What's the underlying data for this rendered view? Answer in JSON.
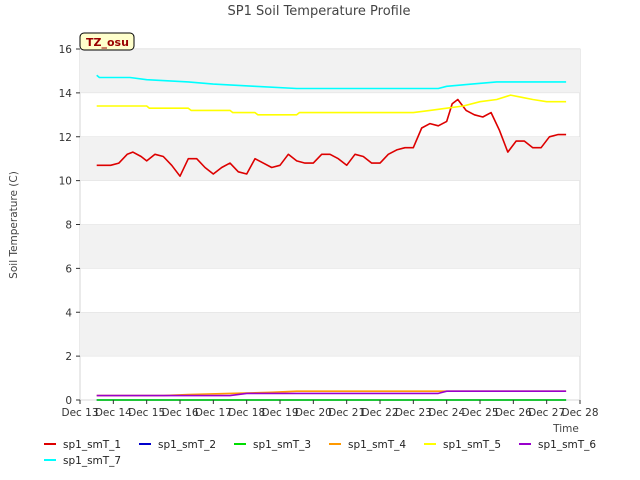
{
  "chart_data": {
    "type": "line",
    "title": "SP1 Soil Temperature Profile",
    "ylabel": "Soil Temperature (C)",
    "xlabel": "Time",
    "badge": "TZ_osu",
    "ylim": [
      0,
      16
    ],
    "yticks": [
      0,
      2,
      4,
      6,
      8,
      10,
      12,
      14,
      16
    ],
    "xticks": [
      "Dec 13",
      "Dec 14",
      "Dec 15",
      "Dec 16",
      "Dec 17",
      "Dec 18",
      "Dec 19",
      "Dec 20",
      "Dec 21",
      "Dec 22",
      "Dec 23",
      "Dec 24",
      "Dec 25",
      "Dec 26",
      "Dec 27",
      "Dec 28"
    ],
    "xlim": [
      "2020-12-13",
      "2020-12-28"
    ],
    "grid": "horizontal bands",
    "legend_position": "bottom",
    "series": [
      {
        "name": "sp1_smT_1",
        "color": "#dd0000",
        "x": [
          "2020-12-13T12:00",
          "2020-12-13T22:00",
          "2020-12-14T04:00",
          "2020-12-14T10:00",
          "2020-12-14T14:00",
          "2020-12-14T20:00",
          "2020-12-15T00:00",
          "2020-12-15T06:00",
          "2020-12-15T12:00",
          "2020-12-15T18:00",
          "2020-12-16T00:00",
          "2020-12-16T06:00",
          "2020-12-16T12:00",
          "2020-12-16T18:00",
          "2020-12-17T00:00",
          "2020-12-17T06:00",
          "2020-12-17T12:00",
          "2020-12-17T18:00",
          "2020-12-18T00:00",
          "2020-12-18T06:00",
          "2020-12-18T12:00",
          "2020-12-18T18:00",
          "2020-12-19T00:00",
          "2020-12-19T06:00",
          "2020-12-19T12:00",
          "2020-12-19T18:00",
          "2020-12-20T00:00",
          "2020-12-20T06:00",
          "2020-12-20T12:00",
          "2020-12-20T18:00",
          "2020-12-21T00:00",
          "2020-12-21T06:00",
          "2020-12-21T12:00",
          "2020-12-21T18:00",
          "2020-12-22T00:00",
          "2020-12-22T06:00",
          "2020-12-22T12:00",
          "2020-12-22T18:00",
          "2020-12-23T00:00",
          "2020-12-23T06:00",
          "2020-12-23T12:00",
          "2020-12-23T18:00",
          "2020-12-24T00:00",
          "2020-12-24T04:00",
          "2020-12-24T08:00",
          "2020-12-24T14:00",
          "2020-12-24T20:00",
          "2020-12-25T02:00",
          "2020-12-25T08:00",
          "2020-12-25T14:00",
          "2020-12-25T20:00",
          "2020-12-26T02:00",
          "2020-12-26T08:00",
          "2020-12-26T14:00",
          "2020-12-26T20:00",
          "2020-12-27T02:00",
          "2020-12-27T08:00",
          "2020-12-27T14:00"
        ],
        "y": [
          10.7,
          10.7,
          10.8,
          11.2,
          11.3,
          11.1,
          10.9,
          11.2,
          11.1,
          10.7,
          10.2,
          11.0,
          11.0,
          10.6,
          10.3,
          10.6,
          10.8,
          10.4,
          10.3,
          11.0,
          10.8,
          10.6,
          10.7,
          11.2,
          10.9,
          10.8,
          10.8,
          11.2,
          11.2,
          11.0,
          10.7,
          11.2,
          11.1,
          10.8,
          10.8,
          11.2,
          11.4,
          11.5,
          11.5,
          12.4,
          12.6,
          12.5,
          12.7,
          13.5,
          13.7,
          13.2,
          13.0,
          12.9,
          13.1,
          12.3,
          11.3,
          11.8,
          11.8,
          11.5,
          11.5,
          12.0,
          12.1,
          12.1
        ]
      },
      {
        "name": "sp1_smT_2",
        "color": "#0000cc",
        "x": [
          "2020-12-13T12:00",
          "2020-12-27T14:00"
        ],
        "y": [
          0.0,
          0.0
        ]
      },
      {
        "name": "sp1_smT_3",
        "color": "#00dd00",
        "x": [
          "2020-12-13T12:00",
          "2020-12-27T14:00"
        ],
        "y": [
          0.0,
          0.0
        ]
      },
      {
        "name": "sp1_smT_4",
        "color": "#ff9900",
        "x": [
          "2020-12-13T12:00",
          "2020-12-15T12:00",
          "2020-12-16T06:00",
          "2020-12-17T12:00",
          "2020-12-18T18:00",
          "2020-12-19T12:00",
          "2020-12-23T18:00",
          "2020-12-27T14:00"
        ],
        "y": [
          0.2,
          0.2,
          0.25,
          0.3,
          0.35,
          0.4,
          0.4,
          0.4
        ]
      },
      {
        "name": "sp1_smT_5",
        "color": "#ffff00",
        "x": [
          "2020-12-13T12:00",
          "2020-12-15T00:00",
          "2020-12-15T02:00",
          "2020-12-16T06:00",
          "2020-12-16T08:00",
          "2020-12-17T12:00",
          "2020-12-17T14:00",
          "2020-12-18T06:00",
          "2020-12-18T08:00",
          "2020-12-19T12:00",
          "2020-12-19T14:00",
          "2020-12-23T00:00",
          "2020-12-23T12:00",
          "2020-12-24T00:00",
          "2020-12-24T12:00",
          "2020-12-25T00:00",
          "2020-12-25T12:00",
          "2020-12-25T22:00",
          "2020-12-26T06:00",
          "2020-12-26T14:00",
          "2020-12-27T00:00",
          "2020-12-27T14:00"
        ],
        "y": [
          13.4,
          13.4,
          13.3,
          13.3,
          13.2,
          13.2,
          13.1,
          13.1,
          13.0,
          13.0,
          13.1,
          13.1,
          13.2,
          13.3,
          13.4,
          13.6,
          13.7,
          13.9,
          13.8,
          13.7,
          13.6,
          13.6
        ]
      },
      {
        "name": "sp1_smT_6",
        "color": "#9900cc",
        "x": [
          "2020-12-13T12:00",
          "2020-12-17T12:00",
          "2020-12-18T00:00",
          "2020-12-18T18:00",
          "2020-12-23T18:00",
          "2020-12-24T00:00",
          "2020-12-27T14:00"
        ],
        "y": [
          0.2,
          0.2,
          0.3,
          0.3,
          0.3,
          0.4,
          0.4
        ]
      },
      {
        "name": "sp1_smT_7",
        "color": "#00ffff",
        "x": [
          "2020-12-13T12:00",
          "2020-12-13T14:00",
          "2020-12-14T12:00",
          "2020-12-15T00:00",
          "2020-12-16T06:00",
          "2020-12-17T00:00",
          "2020-12-18T06:00",
          "2020-12-19T12:00",
          "2020-12-23T18:00",
          "2020-12-24T00:00",
          "2020-12-24T18:00",
          "2020-12-25T12:00",
          "2020-12-27T14:00"
        ],
        "y": [
          14.8,
          14.7,
          14.7,
          14.6,
          14.5,
          14.4,
          14.3,
          14.2,
          14.2,
          14.3,
          14.4,
          14.5,
          14.5
        ]
      }
    ]
  }
}
